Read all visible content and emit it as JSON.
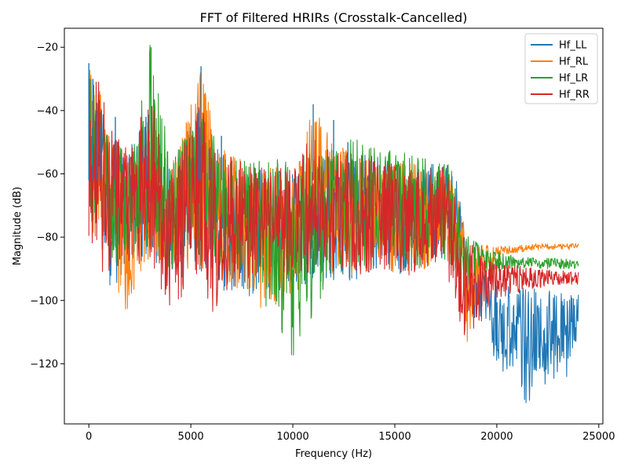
{
  "chart_data": {
    "type": "line",
    "title": "FFT of Filtered HRIRs (Crosstalk-Cancelled)",
    "xlabel": "Frequency (Hz)",
    "ylabel": "Magnitude (dB)",
    "xlim": [
      -1200,
      25200
    ],
    "ylim": [
      -139,
      -14
    ],
    "xticks": [
      0,
      5000,
      10000,
      15000,
      20000,
      25000
    ],
    "xtick_labels": [
      "0",
      "5000",
      "10000",
      "15000",
      "20000",
      "25000"
    ],
    "yticks": [
      -120,
      -100,
      -80,
      -60,
      -40,
      -20
    ],
    "ytick_labels": [
      "−120",
      "−100",
      "−80",
      "−60",
      "−40",
      "−20"
    ],
    "grid": false,
    "legend_position": "top-right",
    "series": [
      {
        "name": "Hf_LL",
        "color": "#1f77b4",
        "envelope": [
          [
            0,
            -30,
            -67
          ],
          [
            500,
            -35,
            -72
          ],
          [
            1000,
            -50,
            -100
          ],
          [
            2000,
            -52,
            -88
          ],
          [
            3000,
            -40,
            -85
          ],
          [
            4000,
            -57,
            -95
          ],
          [
            5500,
            -38,
            -90
          ],
          [
            7000,
            -58,
            -100
          ],
          [
            8000,
            -57,
            -104
          ],
          [
            10000,
            -58,
            -95
          ],
          [
            12000,
            -54,
            -95
          ],
          [
            14000,
            -54,
            -92
          ],
          [
            16000,
            -55,
            -92
          ],
          [
            17500,
            -57,
            -86
          ],
          [
            18000,
            -60,
            -90
          ],
          [
            18500,
            -82,
            -100
          ],
          [
            19500,
            -92,
            -115
          ],
          [
            20500,
            -95,
            -125
          ],
          [
            21500,
            -96,
            -133
          ],
          [
            22500,
            -97,
            -127
          ],
          [
            23500,
            -97,
            -124
          ],
          [
            24000,
            -97,
            -110
          ]
        ]
      },
      {
        "name": "Hf_RL",
        "color": "#ff7f0e",
        "envelope": [
          [
            0,
            -26,
            -80
          ],
          [
            500,
            -32,
            -80
          ],
          [
            1000,
            -48,
            -95
          ],
          [
            1800,
            -55,
            -107
          ],
          [
            3000,
            -42,
            -86
          ],
          [
            4000,
            -58,
            -90
          ],
          [
            5500,
            -27,
            -90
          ],
          [
            6500,
            -52,
            -95
          ],
          [
            8000,
            -57,
            -106
          ],
          [
            10000,
            -58,
            -100
          ],
          [
            11000,
            -38,
            -90
          ],
          [
            12000,
            -50,
            -92
          ],
          [
            14000,
            -56,
            -92
          ],
          [
            16000,
            -56,
            -92
          ],
          [
            17500,
            -58,
            -88
          ],
          [
            18000,
            -62,
            -95
          ],
          [
            18500,
            -80,
            -115
          ],
          [
            19000,
            -82,
            -100
          ],
          [
            20000,
            -83,
            -86
          ],
          [
            22000,
            -82,
            -84
          ],
          [
            24000,
            -82,
            -84
          ]
        ]
      },
      {
        "name": "Hf_LR",
        "color": "#2ca02c",
        "envelope": [
          [
            0,
            -24,
            -74
          ],
          [
            500,
            -35,
            -80
          ],
          [
            1000,
            -48,
            -90
          ],
          [
            2000,
            -52,
            -85
          ],
          [
            3000,
            -19,
            -85
          ],
          [
            4000,
            -55,
            -90
          ],
          [
            5500,
            -40,
            -88
          ],
          [
            7000,
            -55,
            -92
          ],
          [
            8000,
            -56,
            -95
          ],
          [
            10000,
            -55,
            -118
          ],
          [
            12000,
            -52,
            -92
          ],
          [
            13000,
            -48,
            -90
          ],
          [
            15000,
            -53,
            -90
          ],
          [
            17000,
            -54,
            -90
          ],
          [
            17800,
            -57,
            -90
          ],
          [
            18300,
            -78,
            -95
          ],
          [
            19500,
            -84,
            -92
          ],
          [
            21000,
            -86,
            -90
          ],
          [
            24000,
            -87,
            -90
          ]
        ]
      },
      {
        "name": "Hf_RR",
        "color": "#d62728",
        "envelope": [
          [
            0,
            -25,
            -80
          ],
          [
            500,
            -30,
            -94
          ],
          [
            1000,
            -45,
            -92
          ],
          [
            2000,
            -52,
            -90
          ],
          [
            3000,
            -32,
            -88
          ],
          [
            4000,
            -58,
            -105
          ],
          [
            5500,
            -36,
            -92
          ],
          [
            6000,
            -50,
            -104
          ],
          [
            8000,
            -58,
            -92
          ],
          [
            10000,
            -58,
            -95
          ],
          [
            11000,
            -44,
            -90
          ],
          [
            12000,
            -52,
            -92
          ],
          [
            14000,
            -55,
            -92
          ],
          [
            16000,
            -57,
            -92
          ],
          [
            17500,
            -58,
            -90
          ],
          [
            18300,
            -75,
            -112
          ],
          [
            19000,
            -85,
            -110
          ],
          [
            20000,
            -88,
            -100
          ],
          [
            22000,
            -90,
            -96
          ],
          [
            24000,
            -91,
            -95
          ]
        ]
      }
    ],
    "peaks": [
      [
        0,
        -25
      ],
      [
        200,
        -30
      ],
      [
        400,
        -40
      ],
      [
        600,
        -45
      ],
      [
        1300,
        -42
      ],
      [
        2800,
        -42
      ],
      [
        3050,
        -20
      ],
      [
        5400,
        -40
      ],
      [
        5500,
        -26
      ],
      [
        5900,
        -52
      ],
      [
        6000,
        -58
      ],
      [
        6500,
        -48
      ],
      [
        11000,
        -38
      ],
      [
        12000,
        -43
      ],
      [
        12700,
        -50
      ],
      [
        13000,
        -58
      ]
    ]
  }
}
